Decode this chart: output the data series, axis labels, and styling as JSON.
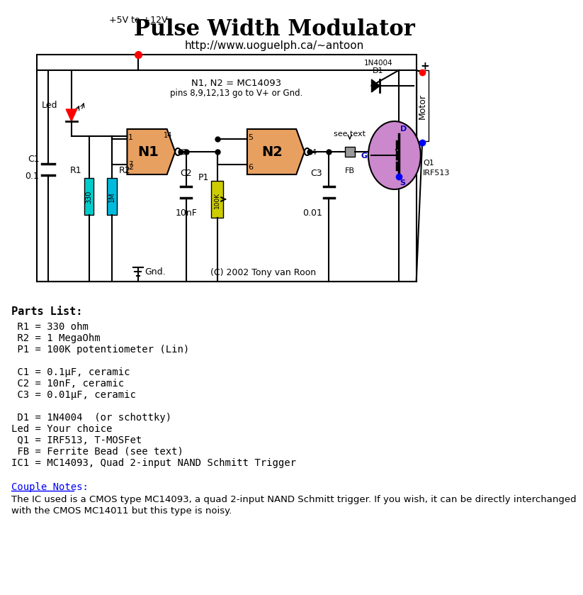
{
  "title": "Pulse Width Modulator",
  "subtitle": "http://www.uoguelph.ca/~antoon",
  "bg_color": "#ffffff",
  "title_fontsize": 22,
  "subtitle_fontsize": 11,
  "parts_list_title": "Parts List:",
  "parts_list": [
    " R1 = 330 ohm",
    " R2 = 1 MegaOhm",
    " P1 = 100K potentiometer (Lin)",
    "",
    " C1 = 0.1μF, ceramic",
    " C2 = 10nF, ceramic",
    " C3 = 0.01μF, ceramic",
    "",
    " D1 = 1N4004  (or schottky)",
    "Led = Your choice",
    " Q1 = IRF513, T-MOSFet",
    " FB = Ferrite Bead (see text)",
    "IC1 = MC14093, Quad 2-input NAND Schmitt Trigger"
  ],
  "notes_title": "Couple Notes:",
  "notes_line1": "The IC used is a CMOS type MC14093, a quad 2-input NAND Schmitt trigger. If you wish, it can be directly interchanged",
  "notes_line2": "with the CMOS MC14011 but this type is noisy.",
  "nand_text": "N1, N2 = MC14093",
  "nand_subtext": "pins 8,9,12,13 go to V+ or Gnd.",
  "copyright": "(C) 2002 Tony van Roon",
  "pwr_label": "+5V to +12V",
  "gnd_label": "Gnd.",
  "r1_label": "330",
  "r2_label": "1M",
  "p1_label": "100K",
  "n1_label": "N1",
  "n2_label": "N2",
  "c2_label": "C2",
  "c2_val": "10nF",
  "c3_label": "C3",
  "c3_val": "0.01",
  "fb_label": "FB",
  "see_text": "see text",
  "d1_label": "D1",
  "d1_val": "1N4004",
  "q1_label": "Q1",
  "q1_val": "IRF513",
  "motor_label": "Motor",
  "c1_label": "C1",
  "c1_val": "0.1"
}
